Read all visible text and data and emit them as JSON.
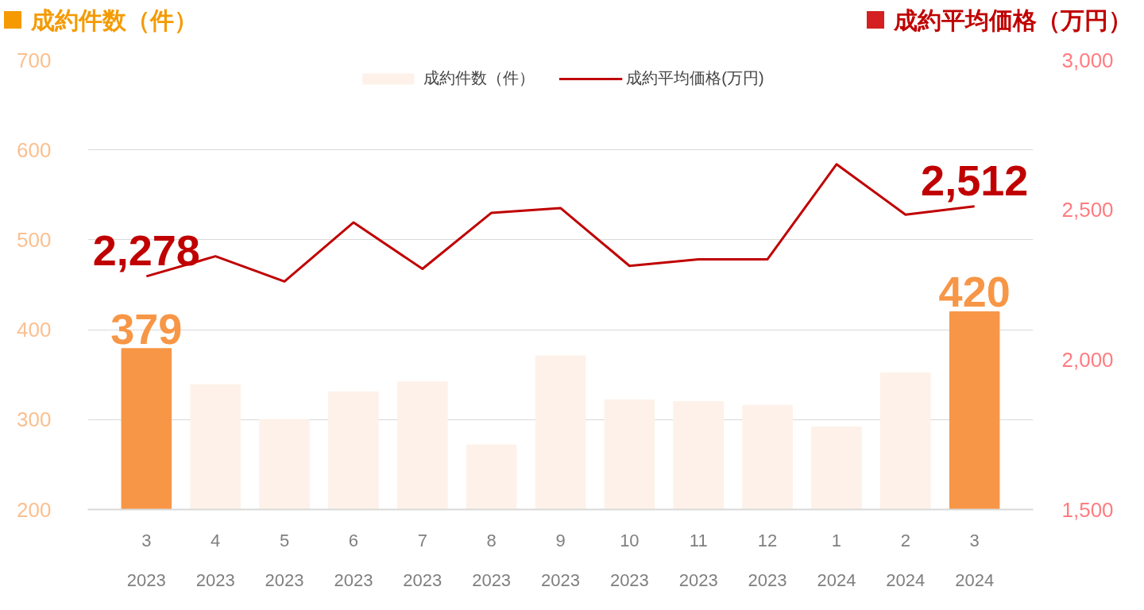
{
  "chart_data": {
    "type": "bar",
    "ylabel": "成約件数（件）",
    "y2label": "成約平均価格（万円）",
    "categories": [
      "3\n2023",
      "4\n2023",
      "5\n2023",
      "6\n2023",
      "7\n2023",
      "8\n2023",
      "9\n2023",
      "10\n2023",
      "11\n2023",
      "12\n2023",
      "1\n2024",
      "2\n2024",
      "3\n2024"
    ],
    "series": [
      {
        "name": "成約件数（件）",
        "color": "#fdf1e9",
        "colors": [
          "#f79646",
          "#fdf1e9",
          "#fdf1e9",
          "#fdf1e9",
          "#fdf1e9",
          "#fdf1e9",
          "#fdf1e9",
          "#fdf1e9",
          "#fdf1e9",
          "#fdf1e9",
          "#fdf1e9",
          "#fdf1e9",
          "#f79646"
        ],
        "values": [
          379,
          339,
          300,
          331,
          342,
          272,
          371,
          322,
          320,
          316,
          292,
          352,
          420
        ],
        "value_labels": [
          "379",
          null,
          null,
          null,
          null,
          null,
          null,
          null,
          null,
          null,
          null,
          null,
          "420"
        ]
      },
      {
        "name": "成約平均価格(万円)",
        "type": "line",
        "axis": "y2",
        "color": "#c00000",
        "values": [
          2278,
          2345,
          2261,
          2458,
          2303,
          2490,
          2506,
          2313,
          2335,
          2335,
          2652,
          2484,
          2512
        ],
        "value_labels": [
          "2,278",
          null,
          null,
          null,
          null,
          null,
          null,
          null,
          null,
          null,
          null,
          null,
          "2,512"
        ]
      }
    ],
    "ylim": [
      200,
      700
    ],
    "yticks": [
      200,
      300,
      400,
      500,
      600,
      700
    ],
    "y2lim": [
      1500,
      3000
    ],
    "y2ticks": [
      {
        "value": 1500,
        "label": "1,500"
      },
      {
        "value": 2000,
        "label": "2,000"
      },
      {
        "value": 2500,
        "label": "2,500"
      },
      {
        "value": 3000,
        "label": "3,000"
      }
    ],
    "grid": "y",
    "legend": "top",
    "line_style": "solid"
  }
}
